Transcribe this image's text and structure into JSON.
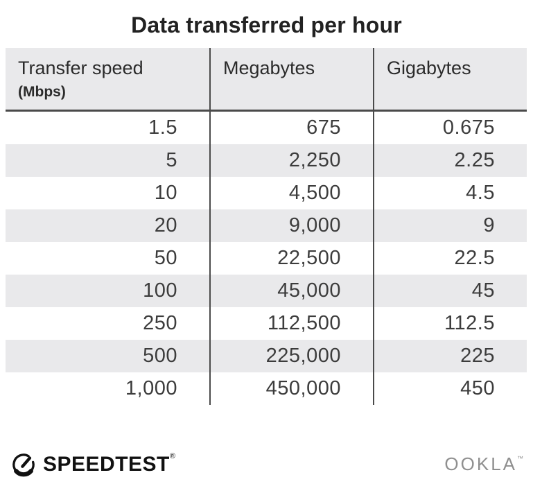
{
  "title": "Data transferred per hour",
  "table": {
    "columns": [
      {
        "label": "Transfer speed",
        "sublabel": "(Mbps)"
      },
      {
        "label": "Megabytes",
        "sublabel": ""
      },
      {
        "label": "Gigabytes",
        "sublabel": ""
      }
    ],
    "rows": [
      [
        "1.5",
        "675",
        "0.675"
      ],
      [
        "5",
        "2,250",
        "2.25"
      ],
      [
        "10",
        "4,500",
        "4.5"
      ],
      [
        "20",
        "9,000",
        "9"
      ],
      [
        "50",
        "22,500",
        "22.5"
      ],
      [
        "100",
        "45,000",
        "45"
      ],
      [
        "250",
        "112,500",
        "112.5"
      ],
      [
        "500",
        "225,000",
        "225"
      ],
      [
        "1,000",
        "450,000",
        "450"
      ]
    ]
  },
  "chart_data": {
    "type": "table",
    "title": "Data transferred per hour",
    "columns": [
      "Transfer speed (Mbps)",
      "Megabytes",
      "Gigabytes"
    ],
    "rows": [
      [
        1.5,
        675,
        0.675
      ],
      [
        5,
        2250,
        2.25
      ],
      [
        10,
        4500,
        4.5
      ],
      [
        20,
        9000,
        9
      ],
      [
        50,
        22500,
        22.5
      ],
      [
        100,
        45000,
        45
      ],
      [
        250,
        112500,
        112.5
      ],
      [
        500,
        225000,
        225
      ],
      [
        1000,
        450000,
        450
      ]
    ],
    "layout_hints": {
      "striped_rows": "even rows shaded",
      "number_alignment": "right"
    }
  },
  "footer": {
    "speedtest_label": "SPEEDTEST",
    "speedtest_mark": "®",
    "ookla_label": "OOKLA",
    "ookla_mark": "™"
  },
  "colors": {
    "title_color": "#222222",
    "header_bg": "#e9e9eb",
    "stripe_bg": "#e9e9eb",
    "divider": "#4a4a4a",
    "cell_text": "#3c3c3c",
    "header_text": "#2b2b2b",
    "speedtest_black": "#111111",
    "ookla_gray": "#8f8f8f"
  }
}
